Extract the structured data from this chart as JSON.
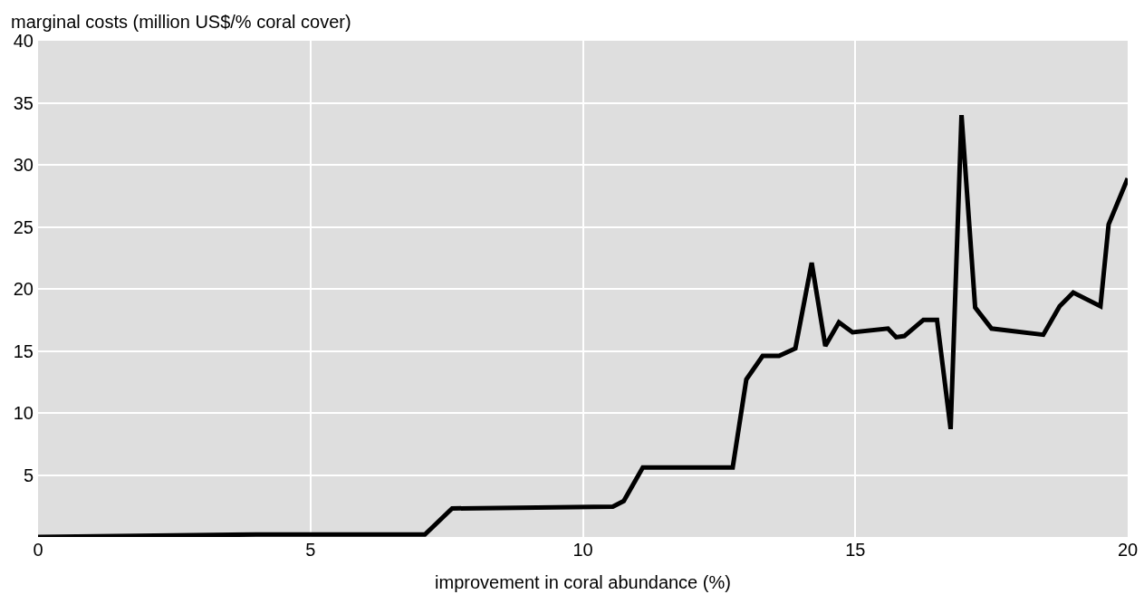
{
  "chart_data": {
    "type": "line",
    "xlabel": "improvement in coral abundance (%)",
    "ylabel": "marginal costs (million US$/% coral cover)",
    "x": [
      0,
      4,
      7.1,
      7.6,
      10.55,
      10.75,
      11.1,
      12.75,
      13.0,
      13.3,
      13.6,
      13.9,
      14.2,
      14.45,
      14.7,
      14.95,
      15.6,
      15.75,
      15.9,
      16.25,
      16.5,
      16.75,
      16.95,
      17.2,
      17.5,
      18.45,
      18.75,
      19.0,
      19.5,
      19.65,
      20
    ],
    "series": [
      {
        "color": "#000000",
        "values": [
          0,
          0.2,
          0.2,
          2.3,
          2.45,
          2.9,
          5.6,
          5.6,
          12.7,
          14.6,
          14.6,
          15.2,
          22.1,
          15.4,
          17.3,
          16.5,
          16.8,
          16.1,
          16.2,
          17.5,
          17.5,
          8.7,
          34,
          18.5,
          16.8,
          16.3,
          18.6,
          19.7,
          18.6,
          25.2,
          28.9
        ]
      }
    ],
    "xlim": [
      0,
      20
    ],
    "xticks": [
      0,
      5,
      10,
      15,
      20
    ],
    "ylim": [
      0,
      40
    ],
    "yticks": [
      5,
      10,
      15,
      20,
      25,
      30,
      35,
      40
    ],
    "grid": true,
    "marker": "none",
    "line_style": "solid"
  }
}
